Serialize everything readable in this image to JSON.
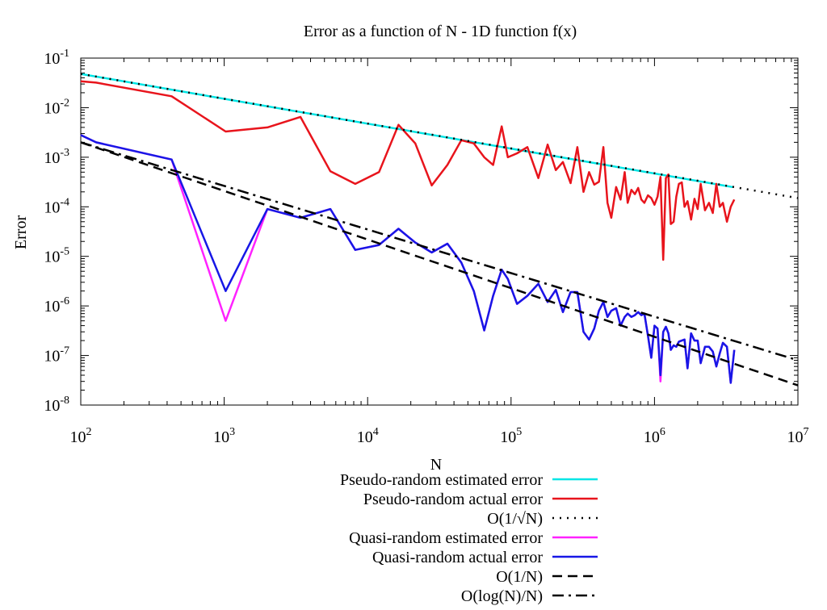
{
  "chart_data": {
    "type": "line",
    "title": "Error as a function of N - 1D function f(x)",
    "xlabel": "N",
    "ylabel": "Error",
    "xscale": "log",
    "yscale": "log",
    "xlim": [
      100,
      10000000
    ],
    "ylim": [
      1e-08,
      0.1
    ],
    "x_ticks": [
      {
        "value": 100,
        "base": "10",
        "exp": "2"
      },
      {
        "value": 1000,
        "base": "10",
        "exp": "3"
      },
      {
        "value": 10000,
        "base": "10",
        "exp": "4"
      },
      {
        "value": 100000,
        "base": "10",
        "exp": "5"
      },
      {
        "value": 1000000,
        "base": "10",
        "exp": "6"
      },
      {
        "value": 10000000,
        "base": "10",
        "exp": "7"
      }
    ],
    "y_ticks": [
      {
        "value": 0.1,
        "base": "10",
        "exp": "-1"
      },
      {
        "value": 0.01,
        "base": "10",
        "exp": "-2"
      },
      {
        "value": 0.001,
        "base": "10",
        "exp": "-3"
      },
      {
        "value": 0.0001,
        "base": "10",
        "exp": "-4"
      },
      {
        "value": 1e-05,
        "base": "10",
        "exp": "-5"
      },
      {
        "value": 1e-06,
        "base": "10",
        "exp": "-6"
      },
      {
        "value": 1e-07,
        "base": "10",
        "exp": "-7"
      },
      {
        "value": 1e-08,
        "base": "10",
        "exp": "-8"
      }
    ],
    "grid": false,
    "legend_position": "below-plot",
    "series": [
      {
        "name": "Pseudo-random estimated error",
        "color": "#00e5e5",
        "dash": "solid",
        "x": [
          100,
          3500000
        ],
        "y": [
          0.048,
          0.00025
        ]
      },
      {
        "name": "Pseudo-random actual error",
        "color": "#e8141c",
        "dash": "solid",
        "x": [
          100,
          128,
          430,
          1024,
          2000,
          3400,
          5500,
          8200,
          12000,
          16400,
          21500,
          28000,
          36000,
          45000,
          55000,
          65000,
          75000,
          86000,
          95000,
          110000,
          130000,
          155000,
          180000,
          205000,
          230000,
          260000,
          290000,
          320000,
          350000,
          380000,
          410000,
          440000,
          470000,
          500000,
          540000,
          580000,
          620000,
          650000,
          690000,
          730000,
          770000,
          810000,
          850000,
          900000,
          950000,
          1000000,
          1050000,
          1100000,
          1150000,
          1200000,
          1250000,
          1300000,
          1360000,
          1420000,
          1480000,
          1550000,
          1620000,
          1700000,
          1800000,
          1900000,
          2000000,
          2100000,
          2250000,
          2400000,
          2550000,
          2700000,
          2850000,
          3000000,
          3200000,
          3400000,
          3600000
        ],
        "y": [
          0.034,
          0.032,
          0.017,
          0.0033,
          0.004,
          0.0065,
          0.00052,
          0.00029,
          0.0005,
          0.0045,
          0.0019,
          0.00027,
          0.0007,
          0.0022,
          0.0019,
          0.001,
          0.0007,
          0.0042,
          0.001,
          0.0012,
          0.0016,
          0.00038,
          0.0018,
          0.00055,
          0.0008,
          0.0003,
          0.0016,
          0.0002,
          0.0005,
          0.00028,
          0.00032,
          0.0016,
          0.00012,
          6e-05,
          0.00025,
          0.00014,
          0.0005,
          0.00012,
          0.00022,
          0.00018,
          0.00024,
          0.00014,
          0.00012,
          0.00017,
          0.00015,
          0.00011,
          0.00016,
          0.0004,
          8.5e-06,
          0.00038,
          0.00045,
          4.5e-05,
          5e-05,
          0.00016,
          0.00029,
          0.00031,
          0.0001,
          0.00013,
          5.5e-05,
          0.000145,
          9e-05,
          0.00029,
          8.5e-05,
          0.00012,
          7.5e-05,
          0.00029,
          0.0001,
          0.00012,
          5e-05,
          0.0001,
          0.00014
        ]
      },
      {
        "name": "O(1/√N)",
        "color": "#000000",
        "dash": "dotted",
        "x": [
          100,
          10000000
        ],
        "y": [
          0.048,
          0.00015
        ]
      },
      {
        "name": "Quasi-random estimated error",
        "color": "#ff22ff",
        "dash": "solid",
        "x": [
          100,
          128,
          430,
          1024,
          2000,
          3400,
          5500,
          8200,
          12000,
          16400,
          21500,
          28000,
          36000,
          45000,
          55000,
          65000,
          75000,
          86000,
          95000,
          110000,
          130000,
          155000,
          180000,
          205000,
          230000,
          260000,
          290000,
          320000,
          350000,
          380000,
          410000,
          440000,
          470000,
          500000,
          540000,
          580000,
          620000,
          650000,
          690000,
          730000,
          770000,
          810000,
          850000,
          900000,
          950000,
          1000000,
          1050000,
          1100000,
          1150000,
          1200000,
          1250000,
          1300000,
          1360000,
          1420000,
          1480000,
          1550000,
          1620000,
          1700000,
          1800000,
          1900000,
          2000000,
          2100000,
          2250000,
          2400000,
          2550000,
          2700000,
          2850000,
          3000000,
          3200000,
          3400000,
          3600000
        ],
        "y": [
          0.0028,
          0.002,
          0.0009,
          5e-07,
          9e-05,
          6e-05,
          9e-05,
          1.35e-05,
          1.7e-05,
          3.6e-05,
          1.9e-05,
          1.2e-05,
          1.8e-05,
          7.5e-06,
          2e-06,
          3.2e-07,
          1.6e-06,
          5.4e-06,
          3.5e-06,
          1.1e-06,
          1.6e-06,
          2.8e-06,
          1.2e-06,
          2.1e-06,
          7.5e-07,
          1.9e-06,
          1.9e-06,
          3e-07,
          2.1e-07,
          3.5e-07,
          8e-07,
          1.2e-06,
          6e-07,
          8e-07,
          9e-07,
          4e-07,
          6e-07,
          7e-07,
          6e-07,
          6.5e-07,
          7.5e-07,
          6.5e-07,
          7e-07,
          2.5e-07,
          9e-08,
          4e-07,
          3.5e-07,
          3e-08,
          3e-07,
          3.8e-07,
          2.8e-07,
          1.3e-07,
          1.6e-07,
          1.5e-07,
          1.9e-07,
          2e-07,
          2.1e-07,
          5.5e-08,
          2.8e-07,
          2e-07,
          2e-07,
          7e-08,
          1.5e-07,
          1.5e-07,
          1.2e-07,
          6e-08,
          1.1e-07,
          1.8e-07,
          1.5e-07,
          2.8e-08,
          1.3e-07
        ]
      },
      {
        "name": "Quasi-random actual error",
        "color": "#1717e6",
        "dash": "solid",
        "x": [
          100,
          128,
          430,
          1024,
          2000,
          3400,
          5500,
          8200,
          12000,
          16400,
          21500,
          28000,
          36000,
          45000,
          55000,
          65000,
          75000,
          86000,
          95000,
          110000,
          130000,
          155000,
          180000,
          205000,
          230000,
          260000,
          290000,
          320000,
          350000,
          380000,
          410000,
          440000,
          470000,
          500000,
          540000,
          580000,
          620000,
          650000,
          690000,
          730000,
          770000,
          810000,
          850000,
          900000,
          950000,
          1000000,
          1050000,
          1100000,
          1150000,
          1200000,
          1250000,
          1300000,
          1360000,
          1420000,
          1480000,
          1550000,
          1620000,
          1700000,
          1800000,
          1900000,
          2000000,
          2100000,
          2250000,
          2400000,
          2550000,
          2700000,
          2850000,
          3000000,
          3200000,
          3400000,
          3600000
        ],
        "y": [
          0.0028,
          0.002,
          0.0009,
          2e-06,
          9e-05,
          6e-05,
          9e-05,
          1.35e-05,
          1.7e-05,
          3.6e-05,
          1.9e-05,
          1.2e-05,
          1.8e-05,
          7.5e-06,
          2e-06,
          3.2e-07,
          1.6e-06,
          5.4e-06,
          3.5e-06,
          1.1e-06,
          1.6e-06,
          2.8e-06,
          1.2e-06,
          2.1e-06,
          7.5e-07,
          1.9e-06,
          1.9e-06,
          3e-07,
          2.1e-07,
          3.5e-07,
          8e-07,
          1.2e-06,
          6e-07,
          8e-07,
          9e-07,
          4e-07,
          6e-07,
          7e-07,
          6e-07,
          6.5e-07,
          7.5e-07,
          6.5e-07,
          7e-07,
          2.5e-07,
          9e-08,
          4e-07,
          3.5e-07,
          4e-08,
          3e-07,
          3.8e-07,
          2.8e-07,
          1.3e-07,
          1.6e-07,
          1.5e-07,
          1.9e-07,
          2e-07,
          2.1e-07,
          5.5e-08,
          2.8e-07,
          2e-07,
          2e-07,
          7e-08,
          1.5e-07,
          1.5e-07,
          1.2e-07,
          6e-08,
          1.1e-07,
          1.8e-07,
          1.5e-07,
          2.8e-08,
          1.3e-07
        ]
      },
      {
        "name": "O(1/N)",
        "color": "#000000",
        "dash": "dashed",
        "x": [
          100,
          10000000
        ],
        "y": [
          0.002,
          2.5e-08
        ]
      },
      {
        "name": "O(log(N)/N)",
        "color": "#000000",
        "dash": "dashdot",
        "x": [
          100,
          10000000
        ],
        "y": [
          0.002,
          8e-08
        ]
      }
    ]
  }
}
